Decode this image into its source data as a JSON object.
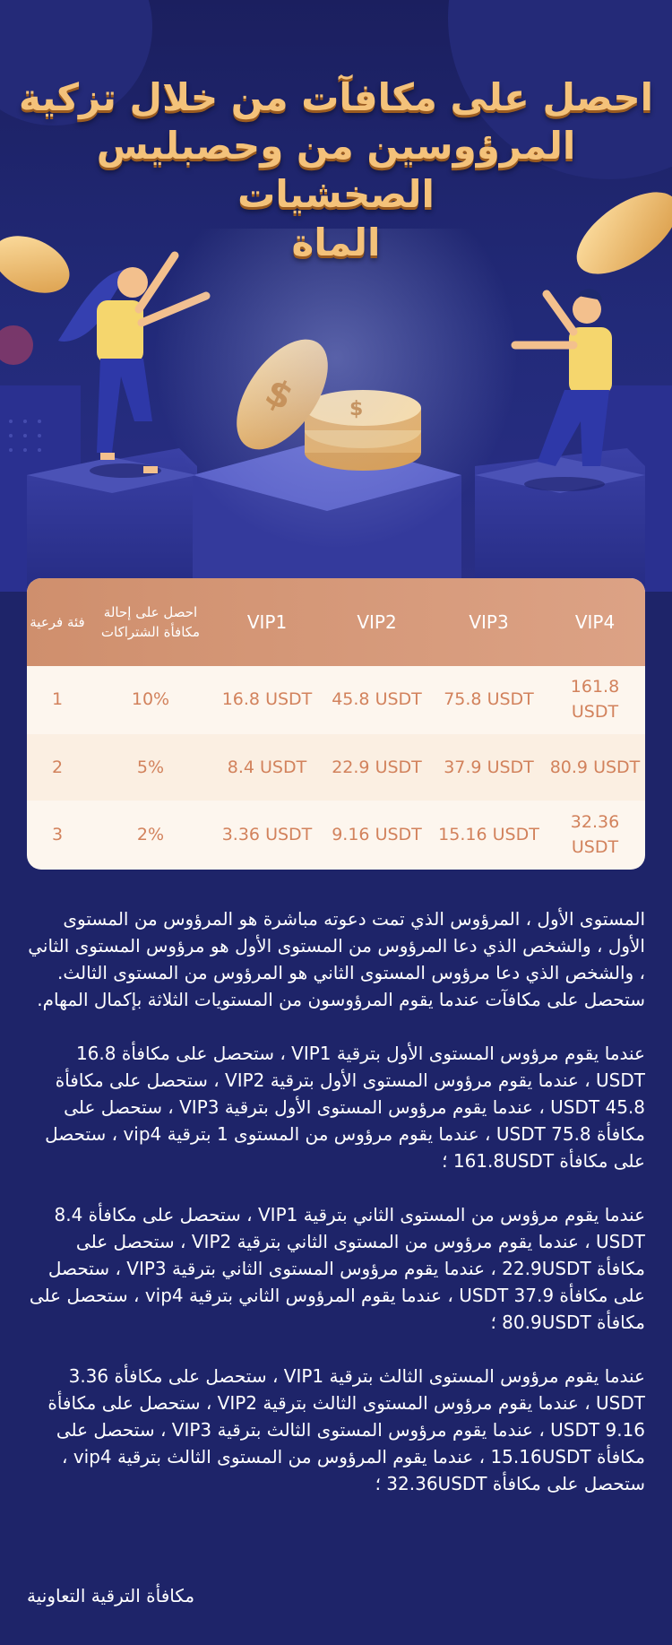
{
  "hero": {
    "title": "احصل على مكافآت من خلال تزكية\nالمرؤوسين من وحصبلیس الصخشیات\nالماة"
  },
  "table": {
    "headers": [
      "فئة فرعية",
      "احصل على إحالة مكافأة الشتراكات",
      "VIP1",
      "VIP2",
      "VIP3",
      "VIP4"
    ],
    "rows": [
      [
        "1",
        "10%",
        "16.8 USDT",
        "45.8 USDT",
        "75.8 USDT",
        "161.8 USDT"
      ],
      [
        "2",
        "5%",
        "8.4 USDT",
        "22.9 USDT",
        "37.9 USDT",
        "80.9 USDT"
      ],
      [
        "3",
        "2%",
        "3.36 USDT",
        "9.16 USDT",
        "15.16 USDT",
        "32.36 USDT"
      ]
    ]
  },
  "paragraphs": [
    "المستوى الأول ، المرؤوس الذي تمت دعوته مباشرة هو المرؤوس من المستوى الأول ، والشخص الذي دعا المرؤوس من المستوى الأول هو مرؤوس المستوى الثاني ، والشخص الذي دعا مرؤوس المستوى الثاني هو المرؤوس من المستوى الثالث. ستحصل على مكافآت عندما يقوم المرؤوسون من المستويات الثلاثة بإكمال المهام.",
    "عندما يقوم مرؤوس المستوى الأول بترقية VIP1 ، ستحصل على مكافأة 16.8 USDT ، عندما يقوم مرؤوس المستوى الأول بترقية VIP2 ، ستحصل على مكافأة 45.8 USDT ، عندما يقوم مرؤوس المستوى الأول بترقية VIP3 ، ستحصل على مكافأة 75.8 USDT ، عندما يقوم مرؤوس من المستوى 1 بترقية vip4 ، ستحصل على مكافأة 161.8USDT ؛",
    "عندما يقوم مرؤوس من المستوى الثاني بترقية VIP1 ، ستحصل على مكافأة 8.4 USDT ، عندما يقوم مرؤوس من المستوى الثاني بترقية VIP2 ، ستحصل على مكافأة 22.9USDT ، عندما يقوم مرؤوس المستوى الثاني بترقية VIP3 ، ستحصل على مكافأة 37.9 USDT ، عندما يقوم المرؤوس الثاني بترقية vip4 ، ستحصل على مكافأة 80.9USDT ؛",
    "عندما يقوم مرؤوس المستوى الثالث بترقية VIP1 ، ستحصل على مكافأة 3.36 USDT ، عندما يقوم مرؤوس المستوى الثالث بترقية VIP2 ، ستحصل على مكافأة 9.16 USDT ، عندما يقوم مرؤوس المستوى الثالث بترقية VIP3 ، ستحصل على مكافأة 15.16USDT ، عندما يقوم المرؤوس من المستوى الثالث بترقية vip4 ، ستحصل على مكافأة 32.36USDT ؛"
  ],
  "footer": {
    "text": "مكافأة الترقية التعاونية"
  },
  "colors": {
    "background": "#1e2469",
    "gold": "#f4c27a",
    "table_header": "#d49878",
    "table_text": "#d2825c"
  },
  "icons": [
    "gold-coin-icon",
    "dollar-sign-icon"
  ]
}
